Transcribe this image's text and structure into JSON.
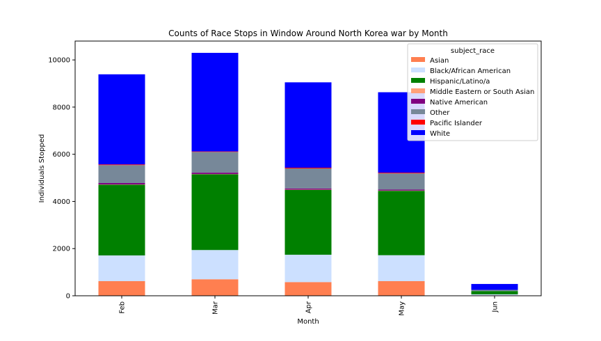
{
  "chart_data": {
    "type": "bar",
    "stacked": true,
    "title": "Counts of Race Stops in Window Around North Korea war by Month",
    "xlabel": "Month",
    "ylabel": "Individuals Stopped",
    "categories": [
      "Feb",
      "Mar",
      "Apr",
      "May",
      "Jun"
    ],
    "ylim": [
      0,
      10800
    ],
    "yticks": [
      0,
      2000,
      4000,
      6000,
      8000,
      10000
    ],
    "grid": false,
    "legend": {
      "title": "subject_race",
      "placement": "top-right"
    },
    "series": [
      {
        "name": "Asian",
        "color": "#ff7f50",
        "values": [
          620,
          700,
          580,
          620,
          20
        ]
      },
      {
        "name": "Black/African American",
        "color": "#cce0ff",
        "values": [
          1090,
          1240,
          1160,
          1100,
          40
        ]
      },
      {
        "name": "Hispanic/Latino/a",
        "color": "#008000",
        "values": [
          3000,
          3210,
          2750,
          2730,
          140
        ]
      },
      {
        "name": "Middle Eastern or South Asian",
        "color": "#ffa07a",
        "values": [
          10,
          10,
          10,
          10,
          0
        ]
      },
      {
        "name": "Native American",
        "color": "#800080",
        "values": [
          60,
          60,
          50,
          40,
          0
        ]
      },
      {
        "name": "Other",
        "color": "#778899",
        "values": [
          760,
          880,
          850,
          690,
          50
        ]
      },
      {
        "name": "Pacific Islander",
        "color": "#ff0000",
        "values": [
          30,
          20,
          30,
          30,
          0
        ]
      },
      {
        "name": "White",
        "color": "#0000ff",
        "values": [
          3820,
          4180,
          3620,
          3410,
          250
        ]
      }
    ]
  }
}
